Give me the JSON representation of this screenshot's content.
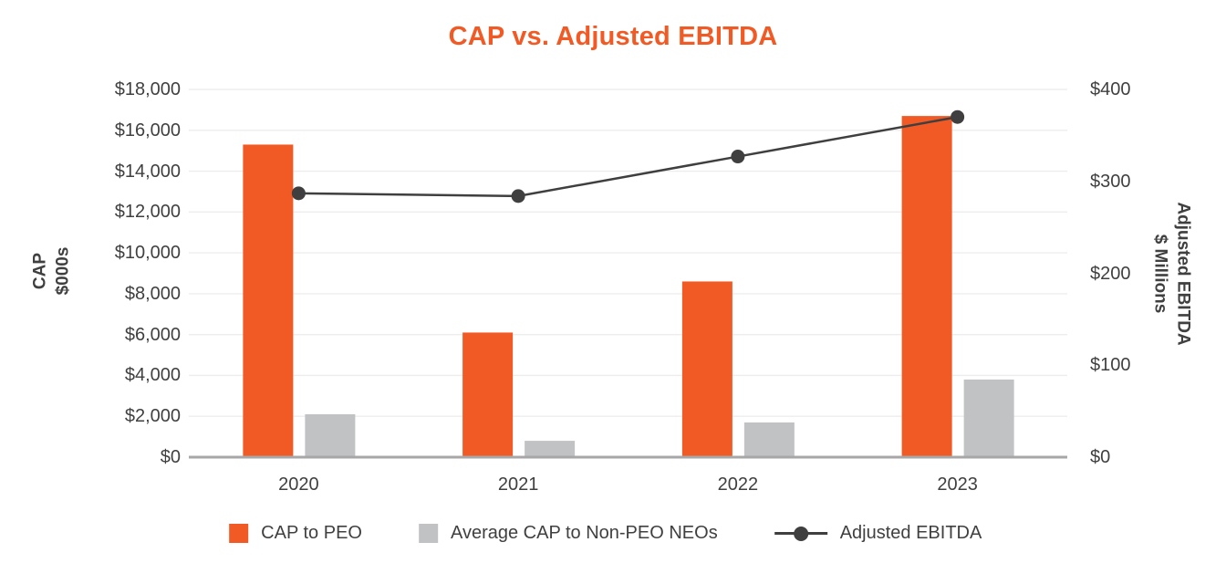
{
  "chart_data": {
    "type": "combo-bar-line",
    "title": "CAP vs. Adjusted EBITDA",
    "categories": [
      "2020",
      "2021",
      "2022",
      "2023"
    ],
    "series": [
      {
        "name": "CAP to PEO",
        "type": "bar",
        "axis": "left",
        "values": [
          15300,
          6100,
          8600,
          16700
        ]
      },
      {
        "name": "Average CAP to Non-PEO NEOs",
        "type": "bar",
        "axis": "left",
        "values": [
          2100,
          800,
          1700,
          3800
        ]
      },
      {
        "name": "Adjusted EBITDA",
        "type": "line",
        "axis": "right",
        "values": [
          287,
          284,
          327,
          370
        ]
      }
    ],
    "left_axis": {
      "label_line1": "CAP",
      "label_line2": "$000s",
      "min": 0,
      "max": 18000,
      "step": 2000,
      "ticks": [
        "$18,000",
        "$16,000",
        "$14,000",
        "$12,000",
        "$10,000",
        "$8,000",
        "$6,000",
        "$4,000",
        "$2,000",
        "$0"
      ]
    },
    "right_axis": {
      "label_line1": "Adjusted EBITDA",
      "label_line2": "$ Millions",
      "min": 0,
      "max": 400,
      "step": 100,
      "ticks": [
        "$400",
        "$300",
        "$200",
        "$100",
        "$0"
      ]
    },
    "grid": true,
    "legend_position": "bottom"
  },
  "colors": {
    "title": "#F15A25",
    "bar_peo": "#F15A25",
    "bar_nonpeo": "#C1C2C4",
    "line": "#3F3F3F",
    "axis_text": "#404040",
    "gridline": "#EDEDED",
    "baseline": "#A7A7A7"
  },
  "legend": {
    "items": [
      {
        "label": "CAP to PEO",
        "marker": "square",
        "color": "#F15A25"
      },
      {
        "label": "Average CAP to Non-PEO NEOs",
        "marker": "square",
        "color": "#C1C2C4"
      },
      {
        "label": "Adjusted EBITDA",
        "marker": "line-dot",
        "color": "#3F3F3F"
      }
    ]
  }
}
